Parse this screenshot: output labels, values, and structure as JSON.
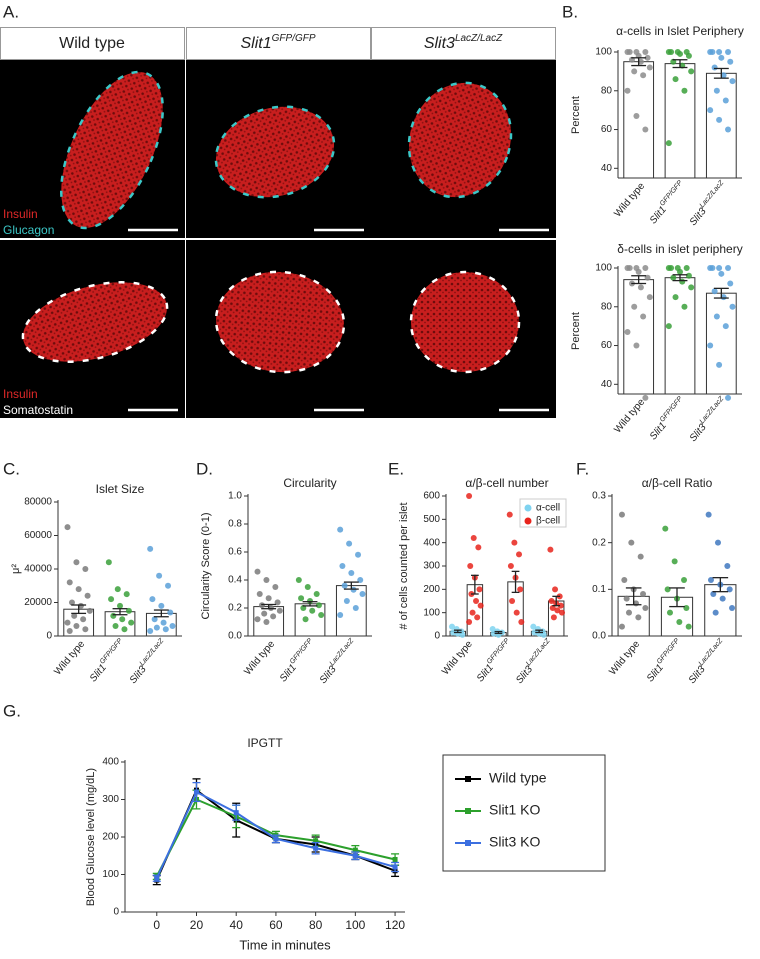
{
  "panel_a": {
    "panel": "A.",
    "headers": [
      "Wild type",
      {
        "name": "Slit1",
        "sup": "GFP/GFP"
      },
      {
        "name": "Slit3",
        "sup": "LacZ/LacZ"
      }
    ],
    "stains": [
      [
        "Insulin",
        "Glucagon"
      ],
      [
        "Insulin",
        "Somatostatin"
      ]
    ]
  },
  "chart_data": [
    {
      "type": "bar-scatter",
      "panel": "B.",
      "title": "α-cells in Islet Periphery",
      "y_label": "Percent",
      "categories": [
        "Wild type",
        {
          "name": "Slit1",
          "sup": "GFP/GFP"
        },
        {
          "name": "Slit3",
          "sup": "LacZ/LacZ"
        }
      ],
      "colors": [
        "#8c8c8c",
        "#3aa03a",
        "#5aa0d8"
      ],
      "values": [
        95,
        94,
        89
      ],
      "errors": [
        2,
        2,
        2.5
      ],
      "points": [
        [
          100,
          100,
          100,
          100,
          98,
          97,
          96,
          95,
          92,
          90,
          88,
          80,
          67,
          60
        ],
        [
          100,
          100,
          100,
          100,
          99,
          98,
          95,
          93,
          90,
          86,
          80,
          53
        ],
        [
          100,
          100,
          100,
          100,
          97,
          95,
          92,
          88,
          85,
          80,
          75,
          70,
          65,
          60
        ]
      ],
      "ylim": [
        35,
        100
      ],
      "yticks": [
        40,
        60,
        80,
        100
      ]
    },
    {
      "type": "bar-scatter",
      "title": "δ-cells in islet periphery",
      "y_label": "Percent",
      "categories": [
        "Wild type",
        {
          "name": "Slit1",
          "sup": "GFP/GFP"
        },
        {
          "name": "Slit3",
          "sup": "LacZ/LacZ"
        }
      ],
      "colors": [
        "#8c8c8c",
        "#3aa03a",
        "#5aa0d8"
      ],
      "values": [
        94,
        95,
        87
      ],
      "errors": [
        2,
        1.5,
        2.5
      ],
      "points": [
        [
          100,
          100,
          100,
          100,
          98,
          95,
          92,
          90,
          85,
          80,
          75,
          67,
          60,
          33
        ],
        [
          100,
          100,
          100,
          100,
          98,
          96,
          95,
          93,
          90,
          85,
          80,
          70
        ],
        [
          100,
          100,
          100,
          100,
          97,
          92,
          88,
          85,
          80,
          75,
          70,
          60,
          50,
          33
        ]
      ],
      "ylim": [
        35,
        100
      ],
      "yticks": [
        40,
        60,
        80,
        100
      ]
    },
    {
      "type": "bar-scatter",
      "panel": "C.",
      "title": "Islet Size",
      "y_label": "μ²",
      "categories": [
        "Wild type",
        {
          "name": "Slit1",
          "sup": "GFP/GFP"
        },
        {
          "name": "Slit3",
          "sup": "LacZ/LacZ"
        }
      ],
      "colors": [
        "#7a7a7a",
        "#3aa03a",
        "#5aa0d8"
      ],
      "values": [
        16000,
        14500,
        13500
      ],
      "errors": [
        2500,
        1800,
        2000
      ],
      "points": [
        [
          65000,
          44000,
          40000,
          32000,
          28000,
          24000,
          20000,
          18000,
          15000,
          12000,
          10000,
          8000,
          6000,
          4000,
          3000
        ],
        [
          44000,
          28000,
          25000,
          22000,
          18000,
          15000,
          12000,
          10000,
          8000,
          6000,
          4000
        ],
        [
          52000,
          36000,
          30000,
          22000,
          18000,
          14000,
          10000,
          8000,
          6000,
          5000,
          4000,
          3000
        ]
      ],
      "ylim": [
        0,
        80000
      ],
      "yticks": [
        0,
        20000,
        40000,
        60000,
        80000
      ]
    },
    {
      "type": "bar-scatter",
      "panel": "D.",
      "title": "Circularity",
      "y_label": "Circularity Score (0-1)",
      "categories": [
        "Wild type",
        {
          "name": "Slit1",
          "sup": "GFP/GFP"
        },
        {
          "name": "Slit3",
          "sup": "LacZ/LacZ"
        }
      ],
      "colors": [
        "#7a7a7a",
        "#3aa03a",
        "#5aa0d8"
      ],
      "values": [
        0.21,
        0.23,
        0.36
      ],
      "errors": [
        0.015,
        0.015,
        0.025
      ],
      "points": [
        [
          0.46,
          0.4,
          0.35,
          0.3,
          0.27,
          0.24,
          0.22,
          0.2,
          0.18,
          0.16,
          0.14,
          0.12,
          0.1
        ],
        [
          0.4,
          0.35,
          0.3,
          0.27,
          0.25,
          0.22,
          0.2,
          0.18,
          0.15,
          0.12
        ],
        [
          0.76,
          0.66,
          0.58,
          0.5,
          0.45,
          0.4,
          0.36,
          0.33,
          0.3,
          0.25,
          0.2,
          0.15
        ]
      ],
      "ylim": [
        0,
        1
      ],
      "yticks": [
        {
          "value": 0,
          "label": "0.0"
        },
        0.2,
        0.4,
        0.6,
        0.8,
        {
          "value": 1,
          "label": "1.0"
        }
      ]
    },
    {
      "type": "grouped-bar-scatter",
      "panel": "E.",
      "title": "α/β-cell number",
      "y_label": "# of cells counted per islet",
      "categories": [
        "Wild type",
        {
          "name": "Slit1",
          "sup": "GFP/GFP"
        },
        {
          "name": "Slit3",
          "sup": "LacZ/LacZ"
        }
      ],
      "series": [
        {
          "name": "α-cell",
          "color": "#7fd3f0",
          "values": [
            20,
            15,
            20
          ],
          "errors": [
            5,
            4,
            5
          ],
          "points": [
            [
              40,
              30,
              20,
              15,
              10,
              5
            ],
            [
              30,
              20,
              15,
              10,
              5
            ],
            [
              40,
              30,
              20,
              15,
              10,
              5
            ]
          ]
        },
        {
          "name": "β-cell",
          "color": "#e8241c",
          "values": [
            220,
            232,
            150
          ],
          "errors": [
            40,
            45,
            20
          ],
          "points": [
            [
              600,
              420,
              380,
              300,
              250,
              200,
              180,
              150,
              130,
              100,
              80,
              60
            ],
            [
              520,
              400,
              350,
              300,
              250,
              200,
              150,
              100,
              60
            ],
            [
              370,
              200,
              170,
              150,
              140,
              130,
              120,
              110,
              100,
              80
            ]
          ]
        }
      ],
      "ylim": [
        0,
        600
      ],
      "yticks": [
        0,
        100,
        200,
        300,
        400,
        500,
        600
      ]
    },
    {
      "type": "bar-scatter",
      "panel": "F.",
      "title": "α/β-cell Ratio",
      "categories": [
        "Wild type",
        {
          "name": "Slit1",
          "sup": "GFP/GFP"
        },
        {
          "name": "Slit3",
          "sup": "LacZ/LacZ"
        }
      ],
      "colors": [
        "#7a7a7a",
        "#3aa03a",
        "#3f78c0"
      ],
      "values": [
        0.085,
        0.083,
        0.11
      ],
      "errors": [
        0.018,
        0.02,
        0.015
      ],
      "points": [
        [
          0.26,
          0.2,
          0.17,
          0.12,
          0.1,
          0.09,
          0.08,
          0.07,
          0.06,
          0.05,
          0.04,
          0.02
        ],
        [
          0.23,
          0.16,
          0.12,
          0.1,
          0.08,
          0.06,
          0.05,
          0.03,
          0.02
        ],
        [
          0.26,
          0.2,
          0.15,
          0.12,
          0.11,
          0.1,
          0.09,
          0.08,
          0.06,
          0.05
        ]
      ],
      "ylim": [
        0,
        0.3
      ],
      "yticks": [
        {
          "value": 0,
          "label": "0.0"
        },
        0.1,
        0.2,
        0.3
      ]
    },
    {
      "type": "line",
      "panel": "G.",
      "title": "IPGTT",
      "y_label": "Blood Glucose level (mg/dL)",
      "x_label": "Time in minutes",
      "x": [
        0,
        20,
        40,
        60,
        80,
        100,
        120
      ],
      "series": [
        {
          "name": "Wild type",
          "color": "#000000",
          "values": [
            85,
            325,
            245,
            195,
            180,
            150,
            110
          ],
          "errors": [
            12,
            30,
            45,
            10,
            20,
            10,
            15
          ]
        },
        {
          "name": "Slit1 KO",
          "color": "#2ca02c",
          "values": [
            95,
            300,
            255,
            205,
            190,
            165,
            140
          ],
          "errors": [
            8,
            25,
            30,
            10,
            15,
            12,
            15
          ]
        },
        {
          "name": "Slit3 KO",
          "color": "#3c6fe0",
          "values": [
            90,
            320,
            265,
            195,
            170,
            150,
            120
          ],
          "errors": [
            8,
            25,
            20,
            10,
            15,
            10,
            12
          ]
        }
      ],
      "xlim": [
        -16,
        125
      ],
      "xticks": [
        0,
        20,
        40,
        60,
        80,
        100,
        120
      ],
      "ylim": [
        0,
        400
      ],
      "yticks": [
        0,
        100,
        200,
        300,
        400
      ]
    }
  ]
}
